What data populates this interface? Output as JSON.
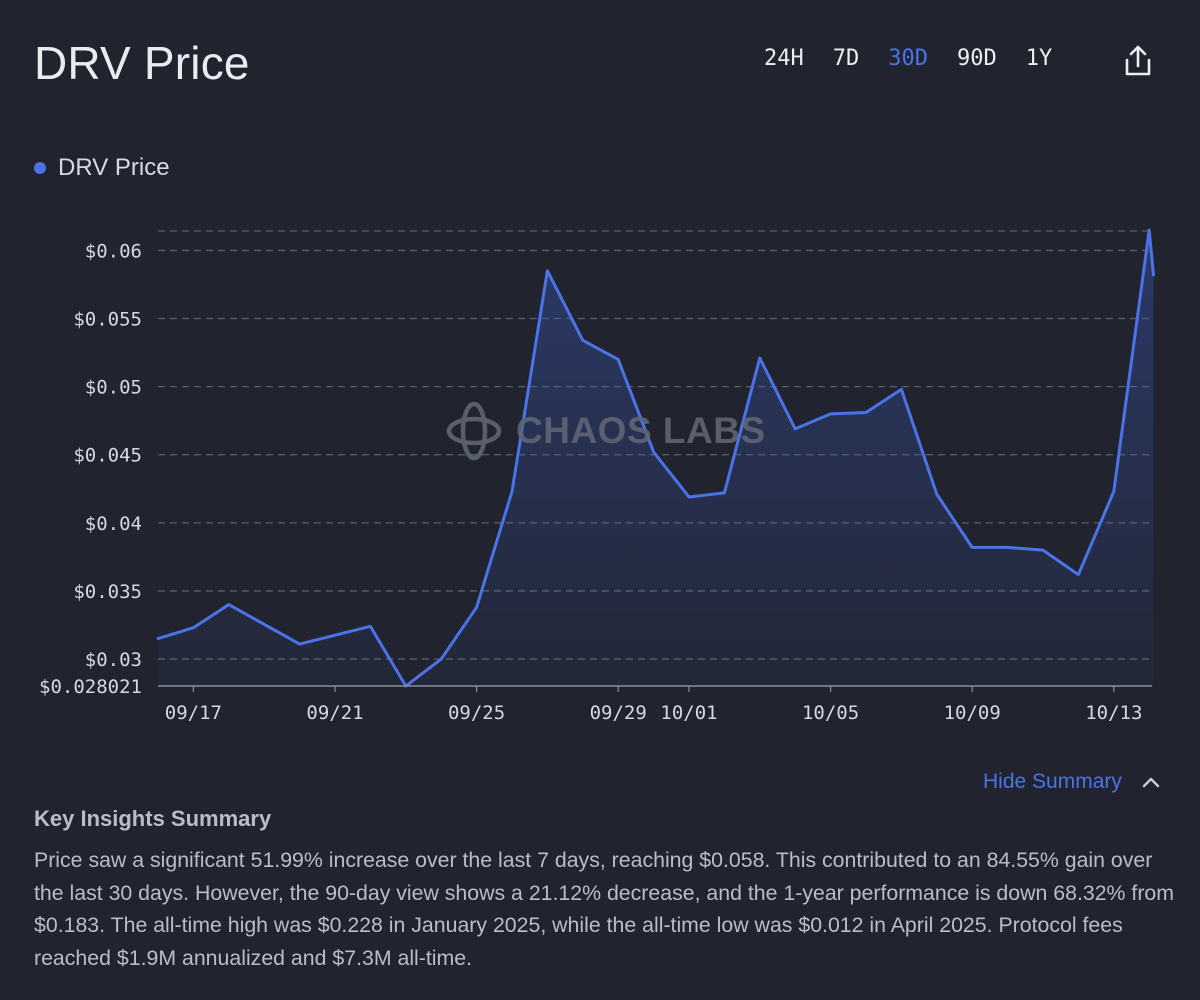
{
  "header": {
    "title": "DRV Price",
    "ranges": [
      {
        "label": "24H",
        "active": false
      },
      {
        "label": "7D",
        "active": false
      },
      {
        "label": "30D",
        "active": true
      },
      {
        "label": "90D",
        "active": false
      },
      {
        "label": "1Y",
        "active": false
      }
    ],
    "share_icon": "share-icon"
  },
  "legend": {
    "label": "DRV Price",
    "color": "#4a73e8"
  },
  "watermark": {
    "text": "CHAOS LABS",
    "icon": "chaos-labs-logo-icon"
  },
  "chart_data": {
    "type": "area",
    "series": [
      {
        "name": "DRV Price",
        "color": "#4a73e8",
        "points": [
          {
            "x": "09/16",
            "y": 0.0315
          },
          {
            "x": "09/17",
            "y": 0.0323
          },
          {
            "x": "09/18",
            "y": 0.034
          },
          {
            "x": "09/20",
            "y": 0.0311
          },
          {
            "x": "09/22",
            "y": 0.0324
          },
          {
            "x": "09/23",
            "y": 0.02802
          },
          {
            "x": "09/24",
            "y": 0.03
          },
          {
            "x": "09/25",
            "y": 0.0338
          },
          {
            "x": "09/26",
            "y": 0.0423
          },
          {
            "x": "09/27",
            "y": 0.0585
          },
          {
            "x": "09/28",
            "y": 0.0534
          },
          {
            "x": "09/29",
            "y": 0.052
          },
          {
            "x": "09/30",
            "y": 0.0452
          },
          {
            "x": "10/01",
            "y": 0.0419
          },
          {
            "x": "10/02",
            "y": 0.0422
          },
          {
            "x": "10/03",
            "y": 0.0521
          },
          {
            "x": "10/04",
            "y": 0.0469
          },
          {
            "x": "10/05",
            "y": 0.048
          },
          {
            "x": "10/06",
            "y": 0.0481
          },
          {
            "x": "10/07",
            "y": 0.0498
          },
          {
            "x": "10/08",
            "y": 0.0421
          },
          {
            "x": "10/09",
            "y": 0.0382
          },
          {
            "x": "10/10",
            "y": 0.0382
          },
          {
            "x": "10/11",
            "y": 0.038
          },
          {
            "x": "10/12",
            "y": 0.0362
          },
          {
            "x": "10/13",
            "y": 0.0423
          },
          {
            "x": "10/14",
            "y": 0.0615
          },
          {
            "x": "10/14",
            "y": 0.0582
          }
        ]
      }
    ],
    "x_ticks": [
      "09/17",
      "09/21",
      "09/25",
      "09/29",
      "10/01",
      "10/05",
      "10/09",
      "10/13"
    ],
    "y_ticks": [
      {
        "value": 0.06,
        "label": "$0.06"
      },
      {
        "value": 0.055,
        "label": "$0.055"
      },
      {
        "value": 0.05,
        "label": "$0.05"
      },
      {
        "value": 0.045,
        "label": "$0.045"
      },
      {
        "value": 0.04,
        "label": "$0.04"
      },
      {
        "value": 0.035,
        "label": "$0.035"
      },
      {
        "value": 0.03,
        "label": "$0.03"
      },
      {
        "value": 0.028021,
        "label": "$0.028021"
      }
    ],
    "ylim": [
      0.028021,
      0.0615
    ],
    "grid": true,
    "legend_position": "top-left"
  },
  "summary": {
    "toggle_label": "Hide Summary",
    "title": "Key Insights Summary",
    "text": "Price saw a significant 51.99% increase over the last 7 days, reaching $0.058. This contributed to an 84.55% gain over the last 30 days. However, the 90-day view shows a 21.12% decrease, and the 1-year performance is down 68.32% from $0.183. The all-time high was $0.228 in January 2025, while the all-time low was $0.012 in April 2025. Protocol fees reached $1.9M annualized and $7.3M all-time."
  }
}
